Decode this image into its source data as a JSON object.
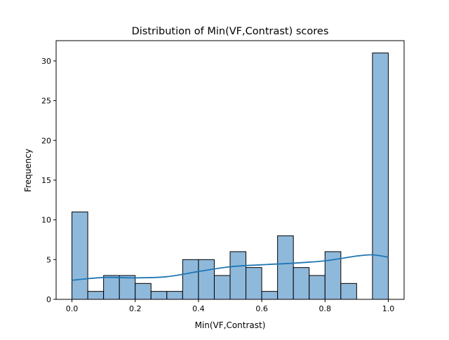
{
  "chart_data": {
    "type": "bar",
    "title": "Distribution of Min(VF,Contrast) scores",
    "xlabel": "Min(VF,Contrast)",
    "ylabel": "Frequency",
    "xlim": [
      -0.05,
      1.05
    ],
    "ylim": [
      0,
      32.55
    ],
    "xticks": [
      0.0,
      0.2,
      0.4,
      0.6,
      0.8,
      1.0
    ],
    "xtick_labels": [
      "0.0",
      "0.2",
      "0.4",
      "0.6",
      "0.8",
      "1.0"
    ],
    "yticks": [
      0,
      5,
      10,
      15,
      20,
      25,
      30
    ],
    "ytick_labels": [
      "0",
      "5",
      "10",
      "15",
      "20",
      "25",
      "30"
    ],
    "bin_edges": [
      0.0,
      0.05,
      0.1,
      0.15,
      0.2,
      0.25,
      0.3,
      0.35,
      0.4,
      0.45,
      0.5,
      0.55,
      0.6,
      0.65,
      0.7,
      0.75,
      0.8,
      0.85,
      0.9,
      0.95,
      1.0
    ],
    "values": [
      11,
      1,
      3,
      3,
      2,
      1,
      1,
      5,
      5,
      3,
      6,
      4,
      1,
      8,
      4,
      3,
      6,
      2,
      0,
      31
    ],
    "kde": {
      "x": [
        0.0,
        0.1,
        0.2,
        0.3,
        0.4,
        0.5,
        0.6,
        0.7,
        0.8,
        0.9,
        0.95,
        1.0
      ],
      "y": [
        2.4,
        2.75,
        2.7,
        2.85,
        3.5,
        4.1,
        4.35,
        4.55,
        4.85,
        5.45,
        5.6,
        5.3
      ]
    },
    "grid": false,
    "colors": {
      "bar_fill": "#8fb9db",
      "bar_edge": "#000000",
      "kde_line": "#1f77b4"
    }
  }
}
